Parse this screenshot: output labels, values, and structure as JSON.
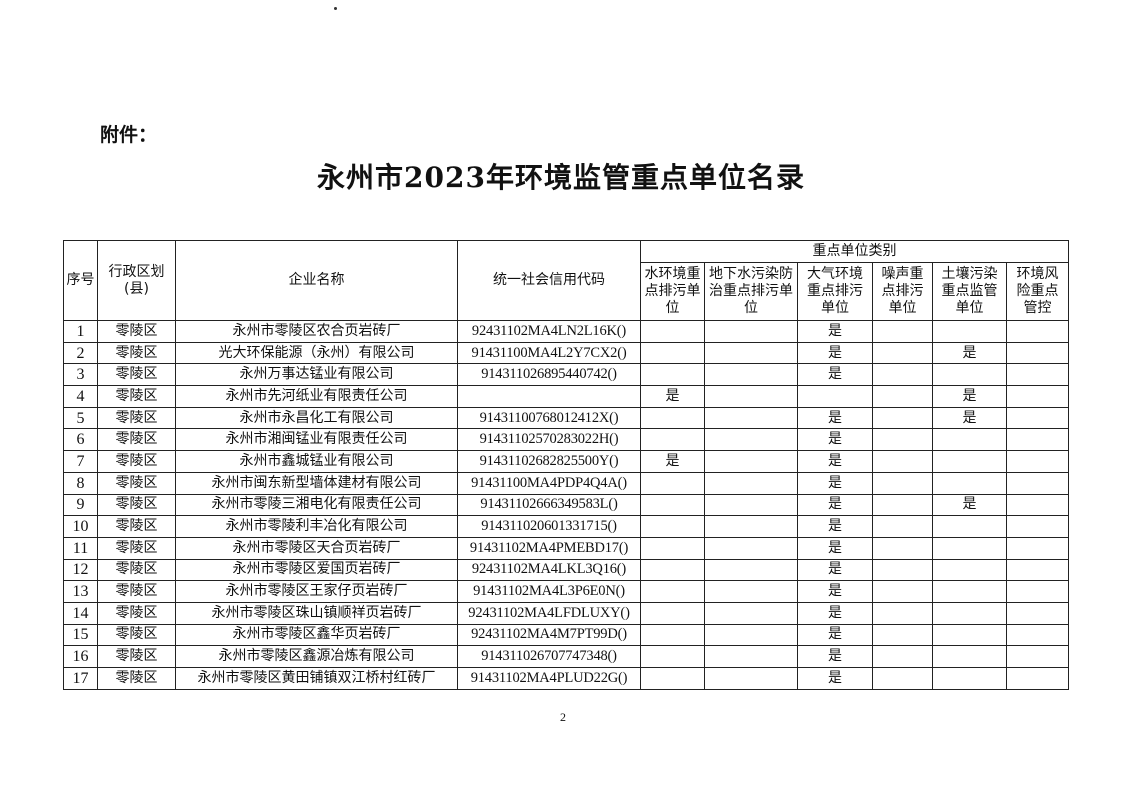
{
  "attachment_label": "附件：",
  "title": "永州市2023年环境监管重点单位名录",
  "headers": {
    "seq": "序号",
    "district": "行政区划(县)",
    "name": "企业名称",
    "code": "统一社会信用代码",
    "category_group": "重点单位类别",
    "categories": [
      "水环境重点排污单位",
      "地下水污染防治重点排污单位",
      "大气环境重点排污单位",
      "噪声重点排污单位",
      "土壤污染重点监管单位",
      "环境风险重点管控"
    ]
  },
  "mark": "是",
  "rows": [
    {
      "seq": "1",
      "district": "零陵区",
      "name": "永州市零陵区农合页岩砖厂",
      "code": "92431102MA4LN2L16K()",
      "marks": [
        "",
        "",
        "是",
        "",
        "",
        ""
      ]
    },
    {
      "seq": "2",
      "district": "零陵区",
      "name": "光大环保能源（永州）有限公司",
      "code": "91431100MA4L2Y7CX2()",
      "marks": [
        "",
        "",
        "是",
        "",
        "是",
        ""
      ]
    },
    {
      "seq": "3",
      "district": "零陵区",
      "name": "永州万事达锰业有限公司",
      "code": "914311026895440742()",
      "marks": [
        "",
        "",
        "是",
        "",
        "",
        ""
      ]
    },
    {
      "seq": "4",
      "district": "零陵区",
      "name": "永州市先河纸业有限责任公司",
      "code": "",
      "marks": [
        "是",
        "",
        "",
        "",
        "是",
        ""
      ]
    },
    {
      "seq": "5",
      "district": "零陵区",
      "name": "永州市永昌化工有限公司",
      "code": "91431100768012412X()",
      "marks": [
        "",
        "",
        "是",
        "",
        "是",
        ""
      ]
    },
    {
      "seq": "6",
      "district": "零陵区",
      "name": "永州市湘闽锰业有限责任公司",
      "code": "91431102570283022H()",
      "marks": [
        "",
        "",
        "是",
        "",
        "",
        ""
      ]
    },
    {
      "seq": "7",
      "district": "零陵区",
      "name": "永州市鑫城锰业有限公司",
      "code": "91431102682825500Y()",
      "marks": [
        "是",
        "",
        "是",
        "",
        "",
        ""
      ]
    },
    {
      "seq": "8",
      "district": "零陵区",
      "name": "永州市闽东新型墙体建材有限公司",
      "code": "91431100MA4PDP4Q4A()",
      "marks": [
        "",
        "",
        "是",
        "",
        "",
        ""
      ]
    },
    {
      "seq": "9",
      "district": "零陵区",
      "name": "永州市零陵三湘电化有限责任公司",
      "code": "91431102666349583L()",
      "marks": [
        "",
        "",
        "是",
        "",
        "是",
        ""
      ]
    },
    {
      "seq": "10",
      "district": "零陵区",
      "name": "永州市零陵利丰冶化有限公司",
      "code": "914311020601331715()",
      "marks": [
        "",
        "",
        "是",
        "",
        "",
        ""
      ]
    },
    {
      "seq": "11",
      "district": "零陵区",
      "name": "永州市零陵区天合页岩砖厂",
      "code": "91431102MA4PMEBD17()",
      "marks": [
        "",
        "",
        "是",
        "",
        "",
        ""
      ]
    },
    {
      "seq": "12",
      "district": "零陵区",
      "name": "永州市零陵区爱国页岩砖厂",
      "code": "92431102MA4LKL3Q16()",
      "marks": [
        "",
        "",
        "是",
        "",
        "",
        ""
      ]
    },
    {
      "seq": "13",
      "district": "零陵区",
      "name": "永州市零陵区王家仔页岩砖厂",
      "code": "91431102MA4L3P6E0N()",
      "marks": [
        "",
        "",
        "是",
        "",
        "",
        ""
      ]
    },
    {
      "seq": "14",
      "district": "零陵区",
      "name": "永州市零陵区珠山镇顺祥页岩砖厂",
      "code": "92431102MA4LFDLUXY()",
      "marks": [
        "",
        "",
        "是",
        "",
        "",
        ""
      ]
    },
    {
      "seq": "15",
      "district": "零陵区",
      "name": "永州市零陵区鑫华页岩砖厂",
      "code": "92431102MA4M7PT99D()",
      "marks": [
        "",
        "",
        "是",
        "",
        "",
        ""
      ]
    },
    {
      "seq": "16",
      "district": "零陵区",
      "name": "永州市零陵区鑫源冶炼有限公司",
      "code": "914311026707747348()",
      "marks": [
        "",
        "",
        "是",
        "",
        "",
        ""
      ]
    },
    {
      "seq": "17",
      "district": "零陵区",
      "name": "永州市零陵区黄田铺镇双江桥村红砖厂",
      "code": "91431102MA4PLUD22G()",
      "marks": [
        "",
        "",
        "是",
        "",
        "",
        ""
      ]
    }
  ],
  "page_number": "2"
}
